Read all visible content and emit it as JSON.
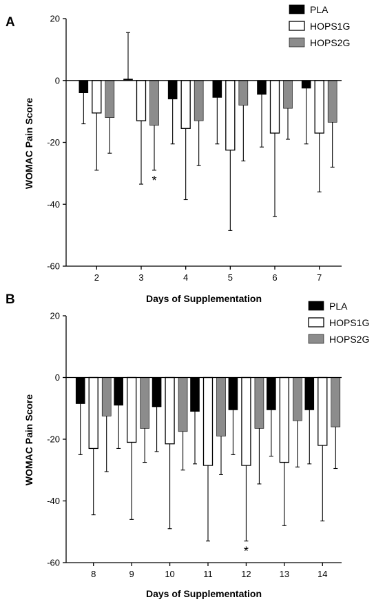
{
  "chart_data": [
    {
      "type": "bar",
      "panel_label": "A",
      "categories": [
        "2",
        "3",
        "4",
        "5",
        "6",
        "7"
      ],
      "xlabel": "Days of Supplementation",
      "ylabel": "WOMAC  Pain Score",
      "ylim": [
        -60,
        20
      ],
      "yticks": [
        20,
        0,
        -20,
        -40,
        -60
      ],
      "legend_position": "top-right",
      "series": [
        {
          "name": "PLA",
          "color": "#000000",
          "fill": "solid",
          "values": [
            -4.0,
            0.5,
            -6.0,
            -5.5,
            -4.5,
            -2.5
          ],
          "errors": [
            10.0,
            15.0,
            14.5,
            15.0,
            17.0,
            18.0
          ]
        },
        {
          "name": "HOPS1G",
          "color": "#ffffff",
          "fill": "outline",
          "values": [
            -10.5,
            -13.0,
            -15.5,
            -22.5,
            -17.0,
            -17.0
          ],
          "errors": [
            18.5,
            20.5,
            23.0,
            26.0,
            27.0,
            19.0
          ]
        },
        {
          "name": "HOPS2G",
          "color": "#8c8c8c",
          "fill": "solid",
          "values": [
            -12.0,
            -14.5,
            -13.0,
            -8.0,
            -9.0,
            -13.5
          ],
          "errors": [
            11.5,
            14.5,
            14.5,
            18.0,
            10.0,
            14.5
          ]
        }
      ],
      "annotations": [
        {
          "text": "*",
          "category": "3",
          "series": "HOPS2G"
        }
      ]
    },
    {
      "type": "bar",
      "panel_label": "B",
      "categories": [
        "8",
        "9",
        "10",
        "11",
        "12",
        "13",
        "14"
      ],
      "xlabel": "Days of Supplementation",
      "ylabel": "WOMAC  Pain Score",
      "ylim": [
        -60,
        20
      ],
      "yticks": [
        20,
        0,
        -20,
        -40,
        -60
      ],
      "legend_position": "top-right",
      "series": [
        {
          "name": "PLA",
          "color": "#000000",
          "fill": "solid",
          "values": [
            -8.5,
            -9.0,
            -9.5,
            -11.0,
            -10.5,
            -10.5,
            -10.5
          ],
          "errors": [
            16.5,
            14.0,
            14.5,
            17.0,
            14.5,
            15.0,
            17.5
          ]
        },
        {
          "name": "HOPS1G",
          "color": "#ffffff",
          "fill": "outline",
          "values": [
            -23.0,
            -21.0,
            -21.5,
            -28.5,
            -28.5,
            -27.5,
            -22.0
          ],
          "errors": [
            21.5,
            25.0,
            27.5,
            24.5,
            24.5,
            20.5,
            24.5
          ]
        },
        {
          "name": "HOPS2G",
          "color": "#8c8c8c",
          "fill": "solid",
          "values": [
            -12.5,
            -16.5,
            -17.5,
            -19.0,
            -16.5,
            -14.0,
            -16.0
          ],
          "errors": [
            18.0,
            11.0,
            12.5,
            12.5,
            18.0,
            15.0,
            13.5
          ]
        }
      ],
      "annotations": [
        {
          "text": "*",
          "category": "12",
          "series": "HOPS1G"
        }
      ]
    }
  ]
}
